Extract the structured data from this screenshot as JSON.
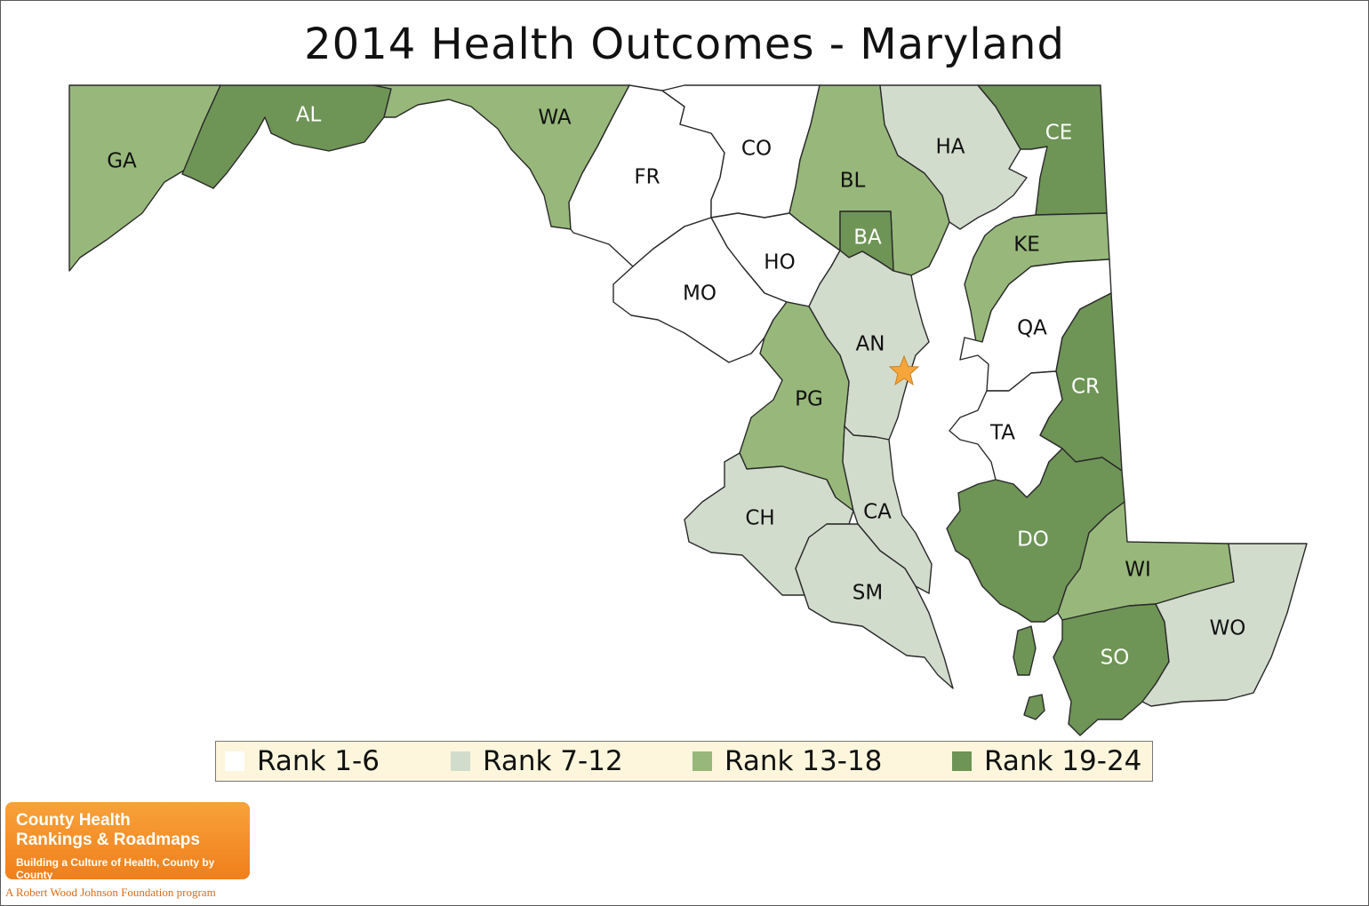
{
  "title": "2014 Health Outcomes - Maryland",
  "colors": {
    "rank_1_6": "#ffffff",
    "rank_7_12": "#d2dccd",
    "rank_13_18": "#97b87a",
    "rank_19_24": "#6e9456",
    "capital_star": "#f5a53a",
    "legend_bg": "#fdf6dd",
    "logo_orange": "#f08a27"
  },
  "legend": [
    {
      "label": "Rank 1-6",
      "color": "#ffffff"
    },
    {
      "label": "Rank 7-12",
      "color": "#d2dccd"
    },
    {
      "label": "Rank 13-18",
      "color": "#97b87a"
    },
    {
      "label": "Rank 19-24",
      "color": "#6e9456"
    }
  ],
  "counties": [
    {
      "code": "GA",
      "rank_group": "Rank 13-18"
    },
    {
      "code": "AL",
      "rank_group": "Rank 19-24"
    },
    {
      "code": "WA",
      "rank_group": "Rank 13-18"
    },
    {
      "code": "FR",
      "rank_group": "Rank 1-6"
    },
    {
      "code": "CO",
      "rank_group": "Rank 1-6"
    },
    {
      "code": "BL",
      "rank_group": "Rank 13-18"
    },
    {
      "code": "BA",
      "rank_group": "Rank 19-24"
    },
    {
      "code": "HA",
      "rank_group": "Rank 7-12"
    },
    {
      "code": "CE",
      "rank_group": "Rank 19-24"
    },
    {
      "code": "HO",
      "rank_group": "Rank 1-6"
    },
    {
      "code": "MO",
      "rank_group": "Rank 1-6"
    },
    {
      "code": "AN",
      "rank_group": "Rank 7-12"
    },
    {
      "code": "PG",
      "rank_group": "Rank 13-18"
    },
    {
      "code": "CH",
      "rank_group": "Rank 7-12"
    },
    {
      "code": "CA",
      "rank_group": "Rank 7-12"
    },
    {
      "code": "SM",
      "rank_group": "Rank 7-12"
    },
    {
      "code": "KE",
      "rank_group": "Rank 13-18"
    },
    {
      "code": "QA",
      "rank_group": "Rank 1-6"
    },
    {
      "code": "CR",
      "rank_group": "Rank 19-24"
    },
    {
      "code": "TA",
      "rank_group": "Rank 1-6"
    },
    {
      "code": "DO",
      "rank_group": "Rank 19-24"
    },
    {
      "code": "WI",
      "rank_group": "Rank 13-18"
    },
    {
      "code": "SO",
      "rank_group": "Rank 19-24"
    },
    {
      "code": "WO",
      "rank_group": "Rank 7-12"
    }
  ],
  "logo": {
    "line1": "County Health",
    "line2": "Rankings & Roadmaps",
    "tagline": "Building a Culture of Health, County by County",
    "foundation": "A Robert Wood Johnson Foundation program"
  }
}
